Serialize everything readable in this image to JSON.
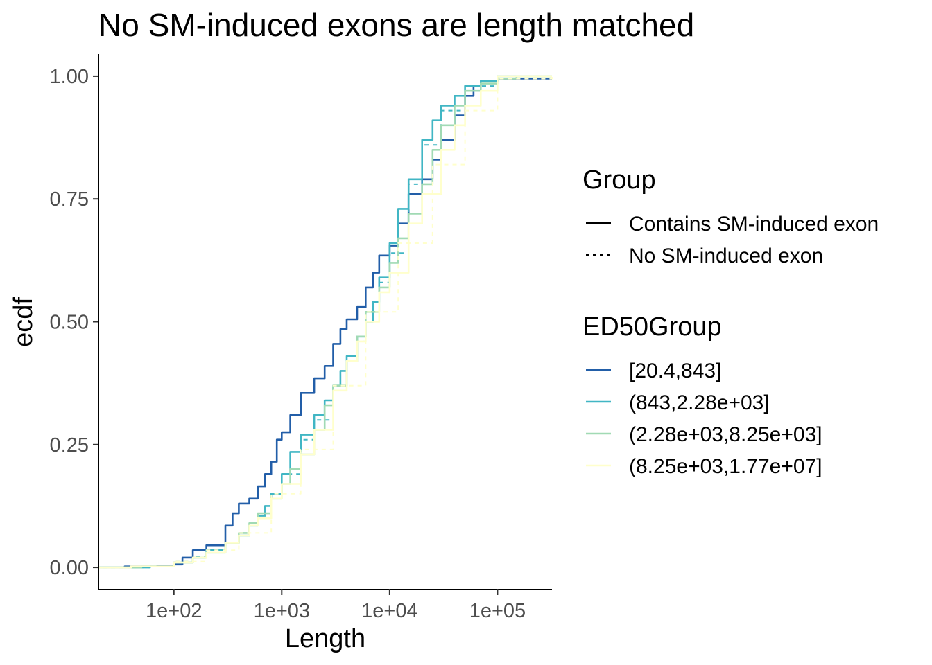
{
  "chart_data": {
    "type": "line",
    "title": "No SM-induced exons are length matched",
    "xlabel": "Length",
    "ylabel": "ecdf",
    "x_scale": "log10",
    "xlim": [
      20,
      320000
    ],
    "ylim": [
      -0.045,
      1.045
    ],
    "x_ticks": [
      {
        "value": 100,
        "label": "1e+02"
      },
      {
        "value": 1000,
        "label": "1e+03"
      },
      {
        "value": 10000,
        "label": "1e+04"
      },
      {
        "value": 100000,
        "label": "1e+05"
      }
    ],
    "y_ticks": [
      {
        "value": 0,
        "label": "0.00"
      },
      {
        "value": 0.25,
        "label": "0.25"
      },
      {
        "value": 0.5,
        "label": "0.50"
      },
      {
        "value": 0.75,
        "label": "0.75"
      },
      {
        "value": 1,
        "label": "1.00"
      }
    ],
    "grid": false,
    "legend_placement": "right",
    "legend_group": {
      "title": "Group",
      "items": [
        {
          "label": "Contains SM-induced exon",
          "style": "solid"
        },
        {
          "label": "No SM-induced exon",
          "style": "dashed"
        }
      ]
    },
    "legend_ed50": {
      "title": "ED50Group",
      "items": [
        {
          "label": "[20.4,843]",
          "color": "#225ea8"
        },
        {
          "label": "(843,2.28e+03]",
          "color": "#41b6c4"
        },
        {
          "label": "(2.28e+03,8.25e+03]",
          "color": "#a1dab4"
        },
        {
          "label": "(8.25e+03,1.77e+07]",
          "color": "#ffffcc"
        }
      ]
    },
    "series": [
      {
        "ed50": "[20.4,843]",
        "group": "Contains SM-induced exon",
        "color": "#225ea8",
        "dash": "solid",
        "x": [
          35,
          70,
          100,
          120,
          150,
          200,
          300,
          350,
          400,
          500,
          600,
          700,
          800,
          900,
          1000,
          1200,
          1500,
          2000,
          2500,
          3000,
          3500,
          4000,
          5000,
          6000,
          7000,
          8000,
          10000,
          12000,
          15000,
          20000,
          25000,
          30000,
          40000,
          50000,
          60000,
          70000,
          100000
        ],
        "y": [
          0.002,
          0.003,
          0.006,
          0.02,
          0.035,
          0.045,
          0.085,
          0.11,
          0.13,
          0.14,
          0.165,
          0.19,
          0.215,
          0.26,
          0.275,
          0.31,
          0.355,
          0.385,
          0.41,
          0.455,
          0.485,
          0.505,
          0.53,
          0.57,
          0.6,
          0.635,
          0.655,
          0.7,
          0.76,
          0.79,
          0.83,
          0.87,
          0.92,
          0.96,
          0.98,
          0.99,
          0.995
        ]
      },
      {
        "ed50": "(843,2.28e+03]",
        "group": "Contains SM-induced exon",
        "color": "#41b6c4",
        "dash": "solid",
        "x": [
          60,
          100,
          150,
          200,
          300,
          400,
          500,
          600,
          700,
          800,
          1000,
          1200,
          1500,
          2000,
          2500,
          3000,
          3500,
          4000,
          5000,
          6000,
          7000,
          8000,
          10000,
          12000,
          15000,
          20000,
          25000,
          30000,
          40000,
          50000,
          70000,
          100000
        ],
        "y": [
          0.002,
          0.01,
          0.02,
          0.035,
          0.05,
          0.065,
          0.085,
          0.105,
          0.125,
          0.15,
          0.19,
          0.235,
          0.27,
          0.31,
          0.34,
          0.37,
          0.4,
          0.43,
          0.47,
          0.5,
          0.54,
          0.59,
          0.66,
          0.73,
          0.79,
          0.87,
          0.91,
          0.94,
          0.96,
          0.98,
          0.99,
          1.0
        ]
      },
      {
        "ed50": "(843,2.28e+03]",
        "group": "No SM-induced exon",
        "color": "#41b6c4",
        "dash": "dashed",
        "x": [
          60,
          100,
          150,
          200,
          300,
          400,
          500,
          600,
          800,
          1000,
          1500,
          2000,
          3000,
          4000,
          5000,
          6000,
          8000,
          10000,
          15000,
          20000,
          30000,
          50000,
          100000
        ],
        "y": [
          0.002,
          0.012,
          0.022,
          0.036,
          0.05,
          0.07,
          0.09,
          0.11,
          0.15,
          0.19,
          0.26,
          0.3,
          0.36,
          0.42,
          0.46,
          0.5,
          0.58,
          0.64,
          0.78,
          0.86,
          0.93,
          0.98,
          1.0
        ]
      },
      {
        "ed50": "(2.28e+03,8.25e+03]",
        "group": "Contains SM-induced exon",
        "color": "#a1dab4",
        "dash": "solid",
        "x": [
          50,
          100,
          150,
          200,
          300,
          400,
          500,
          600,
          800,
          1000,
          1200,
          1500,
          2000,
          2500,
          3000,
          4000,
          5000,
          6000,
          8000,
          10000,
          12000,
          15000,
          20000,
          25000,
          30000,
          40000,
          50000,
          70000,
          100000,
          150000
        ],
        "y": [
          0.002,
          0.01,
          0.02,
          0.03,
          0.05,
          0.07,
          0.09,
          0.11,
          0.14,
          0.17,
          0.2,
          0.23,
          0.28,
          0.33,
          0.37,
          0.42,
          0.47,
          0.52,
          0.57,
          0.62,
          0.67,
          0.72,
          0.78,
          0.85,
          0.9,
          0.94,
          0.97,
          0.985,
          0.995,
          1.0
        ]
      },
      {
        "ed50": "(8.25e+03,1.77e+07]",
        "group": "Contains SM-induced exon",
        "color": "#ffffcc",
        "dash": "solid",
        "x": [
          40,
          100,
          150,
          200,
          300,
          400,
          500,
          600,
          800,
          1000,
          1500,
          2000,
          3000,
          4000,
          5000,
          6000,
          8000,
          10000,
          15000,
          20000,
          30000,
          40000,
          50000,
          70000,
          100000,
          320000
        ],
        "y": [
          0.002,
          0.01,
          0.02,
          0.03,
          0.05,
          0.065,
          0.085,
          0.1,
          0.14,
          0.17,
          0.23,
          0.28,
          0.36,
          0.42,
          0.46,
          0.5,
          0.56,
          0.6,
          0.7,
          0.76,
          0.85,
          0.9,
          0.94,
          0.97,
          1.0,
          1.0
        ]
      },
      {
        "ed50": "(8.25e+03,1.77e+07]",
        "group": "No SM-induced exon",
        "color": "#ffffcc",
        "dash": "dashed",
        "x": [
          40,
          100,
          200,
          400,
          800,
          1500,
          3000,
          6000,
          12000,
          25000,
          50000,
          100000,
          320000
        ],
        "y": [
          0.002,
          0.012,
          0.035,
          0.07,
          0.15,
          0.24,
          0.37,
          0.52,
          0.66,
          0.82,
          0.93,
          0.995,
          1.0
        ]
      }
    ]
  }
}
